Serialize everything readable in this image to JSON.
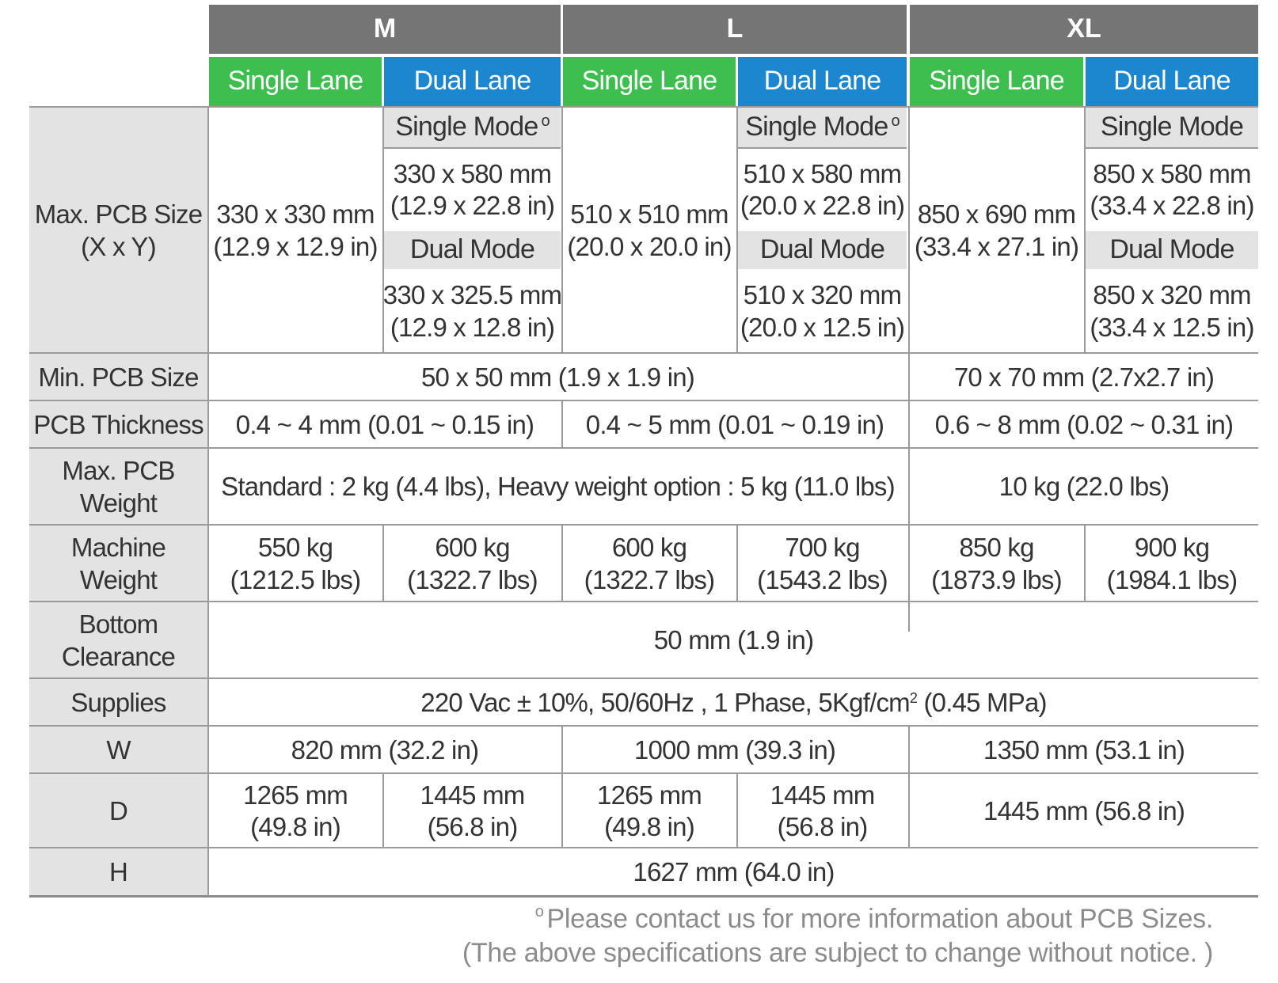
{
  "models": [
    "M",
    "L",
    "XL"
  ],
  "lanes": [
    "Single Lane",
    "Dual Lane",
    "Single Lane",
    "Dual Lane",
    "Single Lane",
    "Dual Lane"
  ],
  "max_pcb": {
    "label": [
      "Max. PCB Size",
      "(X x Y)"
    ],
    "m_single": [
      "330 x 330 mm",
      "(12.9 x 12.9 in)"
    ],
    "m_dual": {
      "single_mode_label": "Single Mode",
      "single_mode": [
        "330 x 580 mm",
        "(12.9 x 22.8 in)"
      ],
      "dual_mode_label": "Dual Mode",
      "dual_mode": [
        "330 x 325.5 mm",
        "(12.9 x 12.8 in)"
      ]
    },
    "l_single": [
      "510 x 510 mm",
      "(20.0 x 20.0 in)"
    ],
    "l_dual": {
      "single_mode_label": "Single Mode",
      "single_mode": [
        "510 x 580 mm",
        "(20.0 x 22.8 in)"
      ],
      "dual_mode_label": "Dual Mode",
      "dual_mode": [
        "510 x 320 mm",
        "(20.0 x 12.5 in)"
      ]
    },
    "xl_single": [
      "850 x 690 mm",
      "(33.4 x 27.1 in)"
    ],
    "xl_dual": {
      "single_mode_label": "Single Mode",
      "single_mode": [
        "850 x 580 mm",
        "(33.4 x 22.8 in)"
      ],
      "dual_mode_label": "Dual Mode",
      "dual_mode": [
        "850 x 320 mm",
        "(33.4 x 12.5 in)"
      ]
    },
    "footnote_mark": "o"
  },
  "min_pcb": {
    "label": "Min. PCB Size",
    "m_l": "50 x 50 mm (1.9 x 1.9 in)",
    "xl": "70 x 70 mm (2.7x2.7 in)"
  },
  "thickness": {
    "label": "PCB Thickness",
    "m": "0.4 ~ 4 mm (0.01 ~ 0.15 in)",
    "l": "0.4 ~ 5 mm (0.01 ~ 0.19 in)",
    "xl": "0.6 ~ 8 mm (0.02 ~ 0.31 in)"
  },
  "pcb_weight": {
    "label": [
      "Max. PCB",
      "Weight"
    ],
    "m_l": "Standard : 2 kg (4.4 lbs), Heavy weight option : 5 kg (11.0 lbs)",
    "xl": "10 kg (22.0 lbs)"
  },
  "machine_weight": {
    "label": [
      "Machine",
      "Weight"
    ],
    "values": [
      [
        "550 kg",
        "(1212.5 lbs)"
      ],
      [
        "600 kg",
        "(1322.7 lbs)"
      ],
      [
        "600 kg",
        "(1322.7 lbs)"
      ],
      [
        "700 kg",
        "(1543.2 lbs)"
      ],
      [
        "850 kg",
        "(1873.9 lbs)"
      ],
      [
        "900 kg",
        "(1984.1 lbs)"
      ]
    ]
  },
  "bottom_clearance": {
    "label": [
      "Bottom",
      "Clearance"
    ],
    "value": "50 mm (1.9 in)"
  },
  "supplies": {
    "label": "Supplies",
    "value_main": "220 Vac ± 10%, 50/60Hz , 1 Phase, 5Kgf/cm",
    "value_sup": "2",
    "value_tail": " (0.45 MPa)"
  },
  "w": {
    "label": "W",
    "m": "820 mm (32.2 in)",
    "l": "1000 mm (39.3 in)",
    "xl": "1350 mm (53.1 in)"
  },
  "d": {
    "label": "D",
    "values": [
      [
        "1265 mm",
        "(49.8 in)"
      ],
      [
        "1445 mm",
        "(56.8 in)"
      ],
      [
        "1265 mm",
        "(49.8 in)"
      ],
      [
        "1445 mm",
        "(56.8 in)"
      ]
    ],
    "xl": "1445 mm (56.8 in)"
  },
  "h": {
    "label": "H",
    "value": "1627 mm (64.0 in)"
  },
  "footnotes": {
    "mark": "o",
    "line1": "Please contact  us for more information about PCB Sizes.",
    "line2": "(The above specifications are subject to change without notice. )"
  },
  "colors": {
    "model_header": "#757575",
    "single_lane": "#3dbe4f",
    "dual_lane": "#1c86cf",
    "label_bg": "#e3e3e3",
    "rule": "#9a9a9a"
  }
}
